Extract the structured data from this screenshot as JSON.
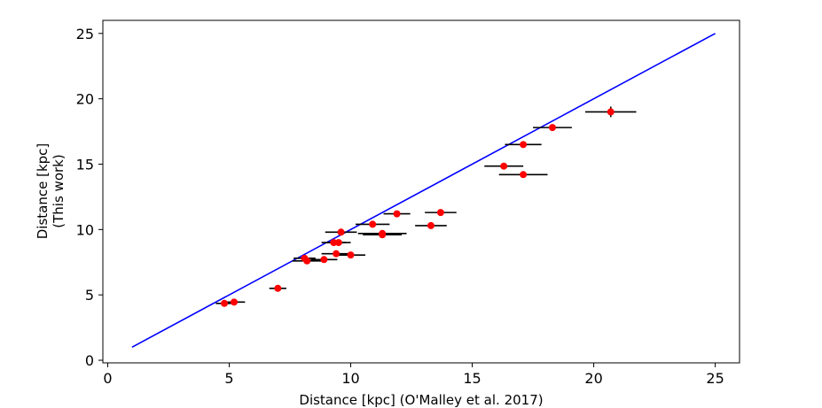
{
  "chart_data": {
    "type": "scatter",
    "xlabel": "Distance [kpc] (O'Malley et al. 2017)",
    "ylabel": [
      "Distance [kpc]",
      "(This work)"
    ],
    "xlim": [
      -0.2,
      26.0
    ],
    "ylim": [
      -0.2,
      26.0
    ],
    "xticks": [
      0,
      5,
      10,
      15,
      20,
      25
    ],
    "yticks": [
      0,
      5,
      10,
      15,
      20,
      25
    ],
    "grid": false,
    "reference_line": {
      "x": [
        1,
        25
      ],
      "y": [
        1,
        25
      ],
      "color": "#0000ff"
    },
    "point_color": "#ff0000",
    "errorbar_color": "#000000",
    "points": [
      {
        "x": 4.8,
        "y": 4.35,
        "xerr": 0.35,
        "yerr": 0.1
      },
      {
        "x": 5.2,
        "y": 4.45,
        "xerr": 0.45,
        "yerr": 0.1
      },
      {
        "x": 7.0,
        "y": 5.5,
        "xerr": 0.35,
        "yerr": 0.1
      },
      {
        "x": 8.1,
        "y": 7.8,
        "xerr": 0.45,
        "yerr": 0.1
      },
      {
        "x": 8.2,
        "y": 7.6,
        "xerr": 0.6,
        "yerr": 0.15
      },
      {
        "x": 8.9,
        "y": 7.7,
        "xerr": 0.55,
        "yerr": 0.1
      },
      {
        "x": 9.4,
        "y": 8.15,
        "xerr": 0.6,
        "yerr": 0.1
      },
      {
        "x": 10.0,
        "y": 8.05,
        "xerr": 0.6,
        "yerr": 0.1
      },
      {
        "x": 9.3,
        "y": 9.0,
        "xerr": 0.5,
        "yerr": 0.1
      },
      {
        "x": 9.5,
        "y": 9.0,
        "xerr": 0.5,
        "yerr": 0.1
      },
      {
        "x": 9.6,
        "y": 9.8,
        "xerr": 0.65,
        "yerr": 0.1
      },
      {
        "x": 10.9,
        "y": 10.4,
        "xerr": 0.7,
        "yerr": 0.1
      },
      {
        "x": 11.3,
        "y": 9.7,
        "xerr": 1.0,
        "yerr": 0.25
      },
      {
        "x": 11.3,
        "y": 9.6,
        "xerr": 0.8,
        "yerr": 0.1
      },
      {
        "x": 11.9,
        "y": 11.2,
        "xerr": 0.55,
        "yerr": 0.1
      },
      {
        "x": 13.3,
        "y": 10.3,
        "xerr": 0.65,
        "yerr": 0.1
      },
      {
        "x": 13.7,
        "y": 11.3,
        "xerr": 0.65,
        "yerr": 0.1
      },
      {
        "x": 16.3,
        "y": 14.85,
        "xerr": 0.8,
        "yerr": 0.2
      },
      {
        "x": 17.1,
        "y": 14.2,
        "xerr": 1.0,
        "yerr": 0.2
      },
      {
        "x": 17.1,
        "y": 16.5,
        "xerr": 0.75,
        "yerr": 0.2
      },
      {
        "x": 18.3,
        "y": 17.8,
        "xerr": 0.8,
        "yerr": 0.15
      },
      {
        "x": 20.7,
        "y": 19.0,
        "xerr": 1.05,
        "yerr": 0.4
      }
    ]
  }
}
